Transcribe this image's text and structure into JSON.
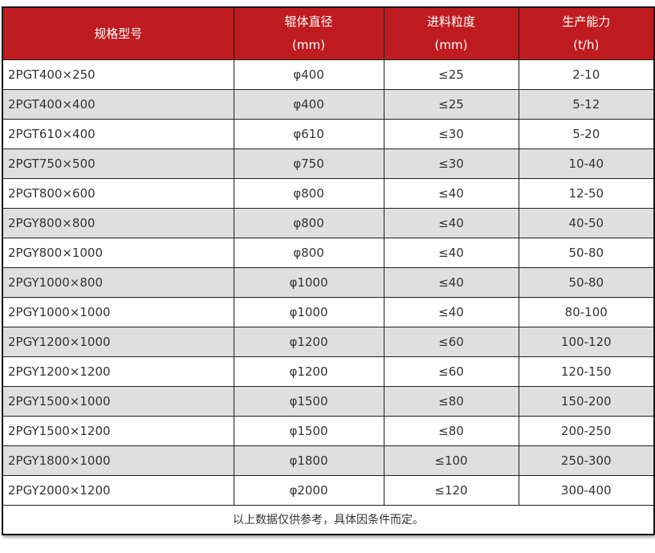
{
  "colors": {
    "header_bg": "#BE1C20",
    "header_text": "#FFFFFF",
    "row_alt_bg": "#E0DFDF",
    "body_text": "#333333",
    "border": "#1F1F1F"
  },
  "table": {
    "columns": [
      {
        "line1": "规格型号",
        "line2": ""
      },
      {
        "line1": "辊体直径",
        "line2": "(mm)"
      },
      {
        "line1": "进料粒度",
        "line2": "(mm)"
      },
      {
        "line1": "生产能力",
        "line2": "(t/h)"
      }
    ],
    "rows": [
      [
        "2PGT400×250",
        "φ400",
        "≤25",
        "2-10"
      ],
      [
        "2PGT400×400",
        "φ400",
        "≤25",
        "5-12"
      ],
      [
        "2PGT610×400",
        "φ610",
        "≤30",
        "5-20"
      ],
      [
        "2PGT750×500",
        "φ750",
        "≤30",
        "10-40"
      ],
      [
        "2PGT800×600",
        "φ800",
        "≤40",
        "12-50"
      ],
      [
        "2PGY800×800",
        "φ800",
        "≤40",
        "40-50"
      ],
      [
        "2PGY800×1000",
        "φ800",
        "≤40",
        "50-80"
      ],
      [
        "2PGY1000×800",
        "φ1000",
        "≤40",
        "50-80"
      ],
      [
        "2PGY1000×1000",
        "φ1000",
        "≤40",
        "80-100"
      ],
      [
        "2PGY1200×1000",
        "φ1200",
        "≤60",
        "100-120"
      ],
      [
        "2PGY1200×1200",
        "φ1200",
        "≤60",
        "120-150"
      ],
      [
        "2PGY1500×1000",
        "φ1500",
        "≤80",
        "150-200"
      ],
      [
        "2PGY1500×1200",
        "φ1500",
        "≤80",
        "200-250"
      ],
      [
        "2PGY1800×1000",
        "φ1800",
        "≤100",
        "250-300"
      ],
      [
        "2PGY2000×1200",
        "φ2000",
        "≤120",
        "300-400"
      ]
    ],
    "footer_note": "以上数据仅供参考，具体因条件而定。"
  }
}
